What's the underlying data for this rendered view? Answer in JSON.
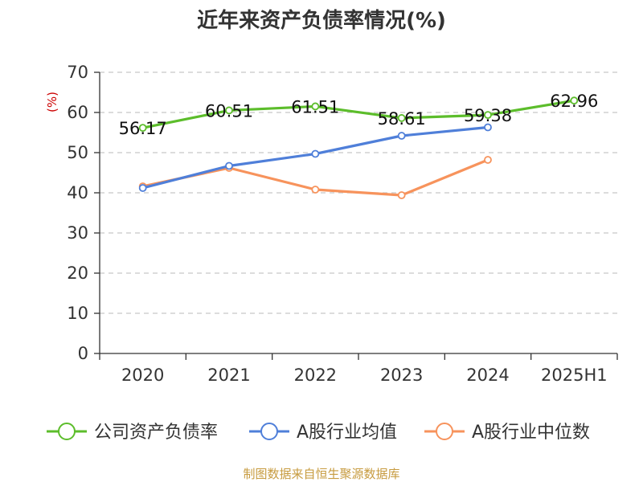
{
  "chart_data": {
    "type": "line",
    "title": "近年来资产负债率情况(%)",
    "ylabel": "(%)",
    "categories": [
      "2020",
      "2021",
      "2022",
      "2023",
      "2024",
      "2025H1"
    ],
    "ylim": [
      0,
      70
    ],
    "yticks": [
      0,
      10,
      20,
      30,
      40,
      50,
      60,
      70
    ],
    "grid": true,
    "legend_position": "bottom",
    "series": [
      {
        "name": "公司资产负债率",
        "color": "#5cbd2b",
        "values": [
          56.17,
          60.51,
          61.51,
          58.61,
          59.38,
          62.96
        ],
        "labels": [
          "56.17",
          "60.51",
          "61.51",
          "58.61",
          "59.38",
          "62.96"
        ]
      },
      {
        "name": "A股行业均值",
        "color": "#4f7fd9",
        "values": [
          41.2,
          46.7,
          49.7,
          54.2,
          56.3,
          null
        ]
      },
      {
        "name": "A股行业中位数",
        "color": "#f7935c",
        "values": [
          41.6,
          46.2,
          40.8,
          39.4,
          48.2,
          null
        ]
      }
    ],
    "source": "制图数据来自恒生聚源数据库"
  },
  "colors": {
    "title": "#333333",
    "unit": "#cc0000",
    "source": "#c79b3f",
    "grid": "#c8c8c8",
    "axis": "#333333"
  }
}
